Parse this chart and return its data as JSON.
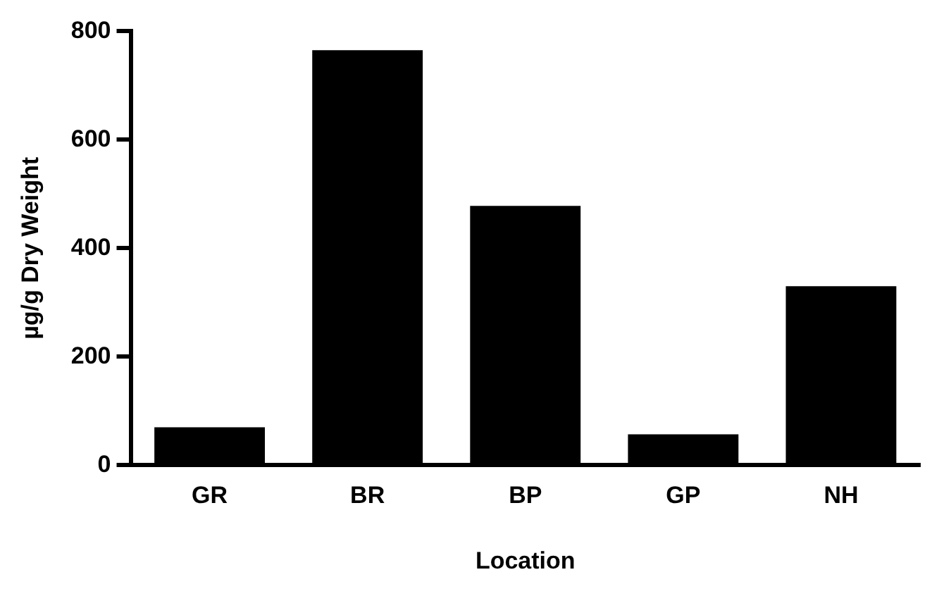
{
  "chart_data": {
    "type": "bar",
    "xlabel": "Location",
    "ylabel": "µg/g Dry Weight",
    "categories": [
      "GR",
      "BR",
      "BP",
      "GP",
      "NH"
    ],
    "values": [
      70,
      765,
      478,
      57,
      330
    ],
    "color": "#000000",
    "ylim": [
      0,
      800
    ],
    "yticks": [
      0,
      200,
      400,
      600,
      800
    ],
    "grid": false,
    "legend": false
  }
}
